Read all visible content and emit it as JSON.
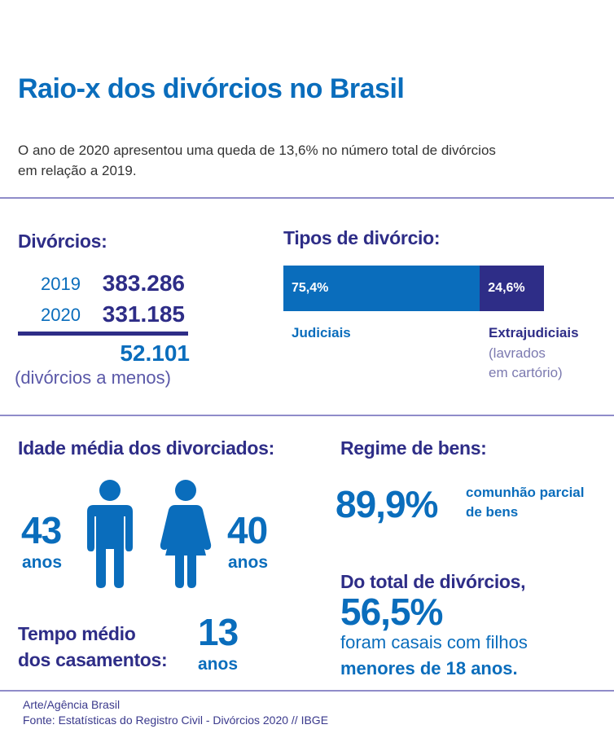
{
  "header": {
    "title": "Raio-x dos divórcios no Brasil",
    "subtitle_line1": "O ano de 2020 apresentou uma queda de 13,6% no número total de divórcios",
    "subtitle_line2": "em relação a 2019."
  },
  "divorcios": {
    "heading": "Divórcios:",
    "rows": [
      {
        "year": "2019",
        "value": "383.286"
      },
      {
        "year": "2020",
        "value": "331.185"
      }
    ],
    "difference": "52.101",
    "difference_note": "(divórcios a menos)"
  },
  "tipos": {
    "heading": "Tipos de divórcio:",
    "segments": [
      {
        "label": "Judiciais",
        "value": "75,4%",
        "percent": 75.4,
        "color": "#0a6dbc"
      },
      {
        "label": "Extrajudiciais",
        "value": "24,6%",
        "percent": 24.6,
        "color": "#2e2d87",
        "note_line1": "(lavrados",
        "note_line2": "em cartório)"
      }
    ]
  },
  "idade": {
    "heading": "Idade média dos divorciados:",
    "men": {
      "value": "43",
      "unit": "anos",
      "icon": "man-icon"
    },
    "women": {
      "value": "40",
      "unit": "anos",
      "icon": "woman-icon"
    }
  },
  "tempo": {
    "label_line1": "Tempo médio",
    "label_line2": "dos casamentos:",
    "value": "13",
    "unit": "anos"
  },
  "regime": {
    "heading": "Regime de bens:",
    "value": "89,9%",
    "label_line1": "comunhão parcial",
    "label_line2": "de bens"
  },
  "filhos": {
    "intro": "Do total de divórcios,",
    "value": "56,5%",
    "line1": "foram casais com filhos",
    "line2": "menores de 18 anos."
  },
  "footer": {
    "credit": "Arte/Agência Brasil",
    "source": "Fonte: Estatísticas do Registro Civil - Divórcios 2020 // IBGE"
  },
  "colors": {
    "blue": "#0a6dbc",
    "navy": "#2e2d87",
    "divider": "#8f8cc9"
  }
}
